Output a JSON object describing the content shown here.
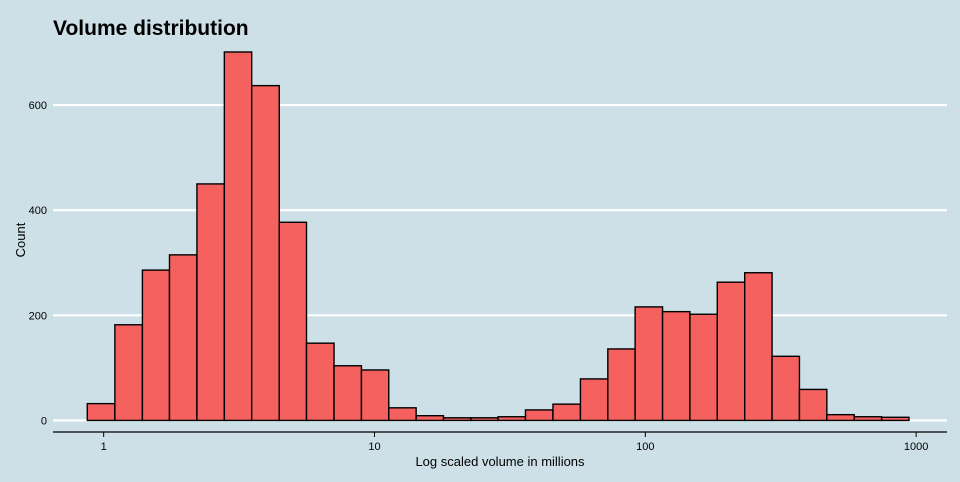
{
  "colors": {
    "background": "#cde0e7",
    "bar_fill": "#f4615e",
    "bar_stroke": "#000000",
    "gridline": "#ffffff",
    "axis": "#000000"
  },
  "chart_data": {
    "type": "bar",
    "title": "Volume distribution",
    "xlabel": "Log scaled volume in millions",
    "ylabel": "Count",
    "x_scale": "log10",
    "xlim": [
      0.65,
      1300
    ],
    "ylim": [
      -22,
      720
    ],
    "grid": "horizontal major gridlines only",
    "x_ticks": [
      {
        "value": 1,
        "label": "1"
      },
      {
        "value": 10,
        "label": "10"
      },
      {
        "value": 100,
        "label": "100"
      },
      {
        "value": 1000,
        "label": "1000"
      }
    ],
    "y_ticks": [
      {
        "value": 0,
        "label": "0"
      },
      {
        "value": 200,
        "label": "200"
      },
      {
        "value": 400,
        "label": "400"
      },
      {
        "value": 600,
        "label": "600"
      }
    ],
    "bins": [
      {
        "x0": 0.87,
        "x1": 1.1,
        "count": 32
      },
      {
        "x0": 1.1,
        "x1": 1.39,
        "count": 182
      },
      {
        "x0": 1.39,
        "x1": 1.75,
        "count": 286
      },
      {
        "x0": 1.75,
        "x1": 2.21,
        "count": 315
      },
      {
        "x0": 2.21,
        "x1": 2.79,
        "count": 450
      },
      {
        "x0": 2.79,
        "x1": 3.52,
        "count": 701
      },
      {
        "x0": 3.52,
        "x1": 4.45,
        "count": 637
      },
      {
        "x0": 4.45,
        "x1": 5.61,
        "count": 377
      },
      {
        "x0": 5.61,
        "x1": 7.09,
        "count": 147
      },
      {
        "x0": 7.09,
        "x1": 8.95,
        "count": 104
      },
      {
        "x0": 8.95,
        "x1": 11.29,
        "count": 96
      },
      {
        "x0": 11.29,
        "x1": 14.25,
        "count": 24
      },
      {
        "x0": 14.25,
        "x1": 17.98,
        "count": 9
      },
      {
        "x0": 17.98,
        "x1": 22.7,
        "count": 5
      },
      {
        "x0": 22.7,
        "x1": 28.6,
        "count": 5
      },
      {
        "x0": 28.6,
        "x1": 36.1,
        "count": 7
      },
      {
        "x0": 36.1,
        "x1": 45.6,
        "count": 20
      },
      {
        "x0": 45.6,
        "x1": 57.6,
        "count": 31
      },
      {
        "x0": 57.6,
        "x1": 72.7,
        "count": 79
      },
      {
        "x0": 72.7,
        "x1": 91.7,
        "count": 136
      },
      {
        "x0": 91.7,
        "x1": 115.8,
        "count": 216
      },
      {
        "x0": 115.8,
        "x1": 146.1,
        "count": 207
      },
      {
        "x0": 146.1,
        "x1": 184.4,
        "count": 202
      },
      {
        "x0": 184.4,
        "x1": 232.8,
        "count": 263
      },
      {
        "x0": 232.8,
        "x1": 293.8,
        "count": 281
      },
      {
        "x0": 293.8,
        "x1": 370.8,
        "count": 122
      },
      {
        "x0": 370.8,
        "x1": 468,
        "count": 59
      },
      {
        "x0": 468,
        "x1": 590.7,
        "count": 11
      },
      {
        "x0": 590.7,
        "x1": 745.6,
        "count": 7
      },
      {
        "x0": 745.6,
        "x1": 941,
        "count": 6
      },
      {
        "x0": 941,
        "x1": 1088,
        "count": 0
      }
    ]
  }
}
